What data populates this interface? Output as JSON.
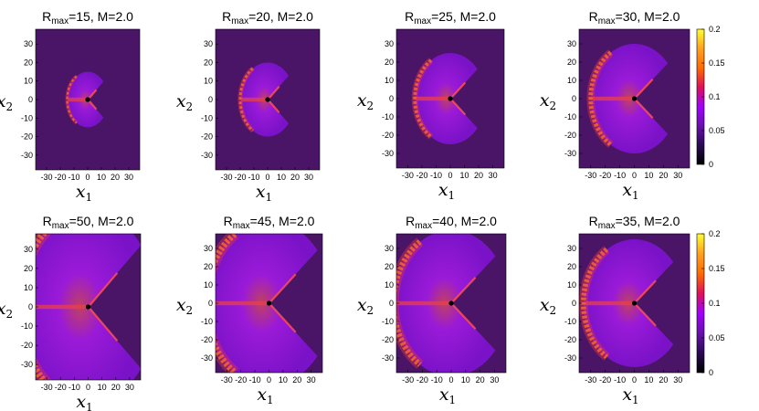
{
  "colors": {
    "background": "#4a1566",
    "colormap": [
      "#000000",
      "#2a0a55",
      "#6a0fb0",
      "#a000ff",
      "#e0105a",
      "#ff6a00",
      "#ffa020",
      "#ffff30"
    ]
  },
  "panels": [
    {
      "title": {
        "main": "R",
        "sub": "max",
        "rest": "=15, M=2.0"
      }
    },
    {
      "title": {
        "main": "R",
        "sub": "max",
        "rest": "=20, M=2.0"
      }
    },
    {
      "title": {
        "main": "R",
        "sub": "max",
        "rest": "=25, M=2.0"
      }
    },
    {
      "title": {
        "main": "R",
        "sub": "max",
        "rest": "=30, M=2.0"
      }
    },
    {
      "title": {
        "main": "R",
        "sub": "max",
        "rest": "=50, M=2.0"
      }
    },
    {
      "title": {
        "main": "R",
        "sub": "max",
        "rest": "=45, M=2.0"
      }
    },
    {
      "title": {
        "main": "R",
        "sub": "max",
        "rest": "=40, M=2.0"
      }
    },
    {
      "title": {
        "main": "R",
        "sub": "max",
        "rest": "=35, M=2.0"
      }
    }
  ],
  "axes": {
    "xlabel": {
      "main": "x",
      "sub": "1"
    },
    "ylabel": {
      "main": "x",
      "sub": "2"
    },
    "xticks": [
      "-30",
      "-20",
      "-10",
      "0",
      "10",
      "20",
      "30"
    ],
    "yticks": [
      "30",
      "20",
      "10",
      "0",
      "-10",
      "-20",
      "-30"
    ]
  },
  "colorbar": {
    "ticks": [
      "0.2",
      "0.15",
      "0.1",
      "0.05",
      "0"
    ]
  },
  "chart_data": [
    {
      "type": "heatmap",
      "title": "Rmax=15, M=2.0",
      "xlabel": "x1",
      "ylabel": "x2",
      "xlim": [
        -38,
        38
      ],
      "ylim": [
        -38,
        38
      ],
      "radius": 15,
      "vmin": 0,
      "vmax": 0.2,
      "grid": false
    },
    {
      "type": "heatmap",
      "title": "Rmax=20, M=2.0",
      "xlabel": "x1",
      "ylabel": "x2",
      "xlim": [
        -38,
        38
      ],
      "ylim": [
        -38,
        38
      ],
      "radius": 20,
      "vmin": 0,
      "vmax": 0.2,
      "grid": false
    },
    {
      "type": "heatmap",
      "title": "Rmax=25, M=2.0",
      "xlabel": "x1",
      "ylabel": "x2",
      "xlim": [
        -38,
        38
      ],
      "ylim": [
        -38,
        38
      ],
      "radius": 25,
      "vmin": 0,
      "vmax": 0.2,
      "grid": false
    },
    {
      "type": "heatmap",
      "title": "Rmax=30, M=2.0",
      "xlabel": "x1",
      "ylabel": "x2",
      "xlim": [
        -38,
        38
      ],
      "ylim": [
        -38,
        38
      ],
      "radius": 30,
      "vmin": 0,
      "vmax": 0.2,
      "grid": false
    },
    {
      "type": "heatmap",
      "title": "Rmax=50, M=2.0",
      "xlabel": "x1",
      "ylabel": "x2",
      "xlim": [
        -38,
        38
      ],
      "ylim": [
        -38,
        38
      ],
      "radius": 50,
      "vmin": 0,
      "vmax": 0.2,
      "grid": false
    },
    {
      "type": "heatmap",
      "title": "Rmax=45, M=2.0",
      "xlabel": "x1",
      "ylabel": "x2",
      "xlim": [
        -38,
        38
      ],
      "ylim": [
        -38,
        38
      ],
      "radius": 45,
      "vmin": 0,
      "vmax": 0.2,
      "grid": false
    },
    {
      "type": "heatmap",
      "title": "Rmax=40, M=2.0",
      "xlabel": "x1",
      "ylabel": "x2",
      "xlim": [
        -38,
        38
      ],
      "ylim": [
        -38,
        38
      ],
      "radius": 40,
      "vmin": 0,
      "vmax": 0.2,
      "grid": false
    },
    {
      "type": "heatmap",
      "title": "Rmax=35, M=2.0",
      "xlabel": "x1",
      "ylabel": "x2",
      "xlim": [
        -38,
        38
      ],
      "ylim": [
        -38,
        38
      ],
      "radius": 35,
      "vmin": 0,
      "vmax": 0.2,
      "grid": false
    }
  ]
}
